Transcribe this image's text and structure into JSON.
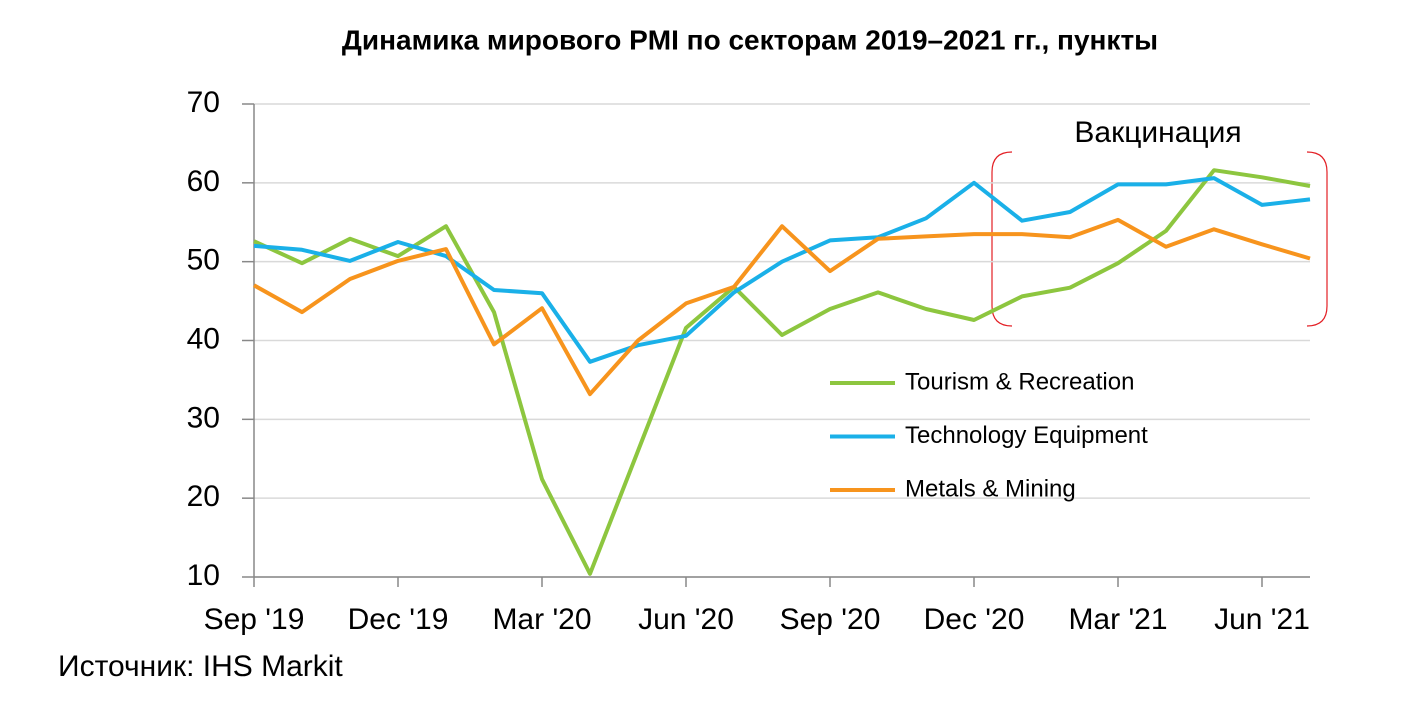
{
  "chart_data": {
    "type": "line",
    "title": "Динамика мирового PMI по секторам 2019–2021 гг., пункты",
    "annotation": "Вакцинация",
    "source": "Источник: IHS Markit",
    "categories": [
      "Sep '19",
      null,
      null,
      "Dec '19",
      null,
      null,
      "Mar '20",
      null,
      null,
      "Jun '20",
      null,
      null,
      "Sep '20",
      null,
      null,
      "Dec '20",
      null,
      null,
      "Mar '21",
      null,
      null,
      "Jun '21",
      null
    ],
    "series": [
      {
        "name": "Tourism & Recreation",
        "color": "#8dc63f",
        "values": [
          52.6,
          49.8,
          52.9,
          50.7,
          54.5,
          43.6,
          22.4,
          10.4,
          26,
          41.6,
          46.8,
          40.7,
          44.0,
          46.1,
          44.0,
          42.6,
          45.6,
          46.7,
          49.8,
          53.9,
          61.6,
          60.7,
          59.6
        ]
      },
      {
        "name": "Technology Equipment",
        "color": "#1ab0e8",
        "values": [
          52.0,
          51.5,
          50.1,
          52.5,
          50.7,
          46.4,
          46.0,
          37.3,
          39.4,
          40.6,
          46.1,
          50.0,
          52.7,
          53.1,
          55.5,
          60.0,
          55.2,
          56.3,
          59.8,
          59.8,
          60.6,
          57.2,
          57.9
        ]
      },
      {
        "name": "Metals & Mining",
        "color": "#f7941d",
        "values": [
          47.0,
          43.6,
          47.8,
          50.1,
          51.6,
          39.5,
          44.1,
          33.2,
          40.0,
          44.7,
          46.8,
          54.5,
          48.8,
          52.9,
          53.2,
          53.5,
          53.5,
          53.1,
          55.3,
          51.9,
          54.1,
          52.2,
          50.4
        ]
      }
    ],
    "ylim": [
      10,
      70
    ],
    "yticks": [
      10,
      20,
      30,
      40,
      50,
      60,
      70
    ],
    "grid": true
  }
}
